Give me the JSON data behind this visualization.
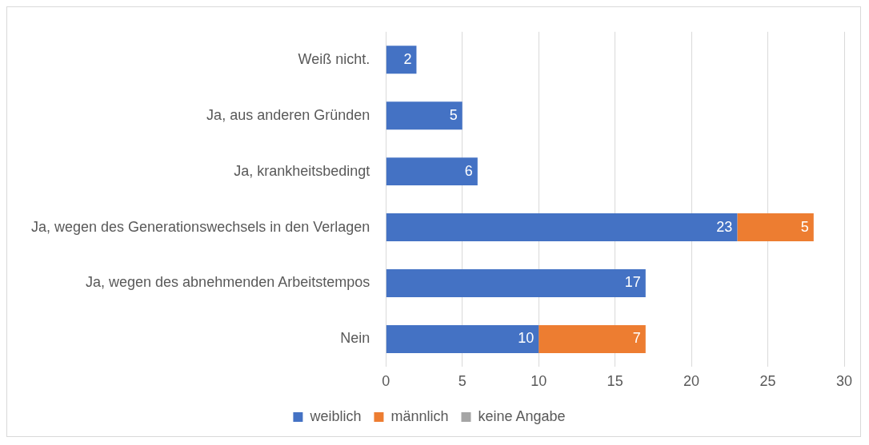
{
  "chart_data": {
    "type": "bar",
    "orientation": "horizontal",
    "stacked": true,
    "categories": [
      "Weiß nicht.",
      "Ja, aus anderen Gründen",
      "Ja, krankheitsbedingt",
      "Ja, wegen des Generationswechsels in den Verlagen",
      "Ja, wegen des abnehmenden Arbeitstempos",
      "Nein"
    ],
    "series": [
      {
        "name": "weiblich",
        "color": "#4472c4",
        "values": [
          2,
          5,
          6,
          23,
          17,
          10
        ]
      },
      {
        "name": "männlich",
        "color": "#ed7d31",
        "values": [
          null,
          null,
          null,
          5,
          null,
          7
        ]
      },
      {
        "name": "keine Angabe",
        "color": "#a5a5a5",
        "values": [
          null,
          null,
          null,
          null,
          null,
          null
        ]
      }
    ],
    "xlim": [
      0,
      30
    ],
    "xticks": [
      0,
      5,
      10,
      15,
      20,
      25,
      30
    ],
    "grid": "x",
    "legend": "bottom",
    "data_labels": true
  }
}
